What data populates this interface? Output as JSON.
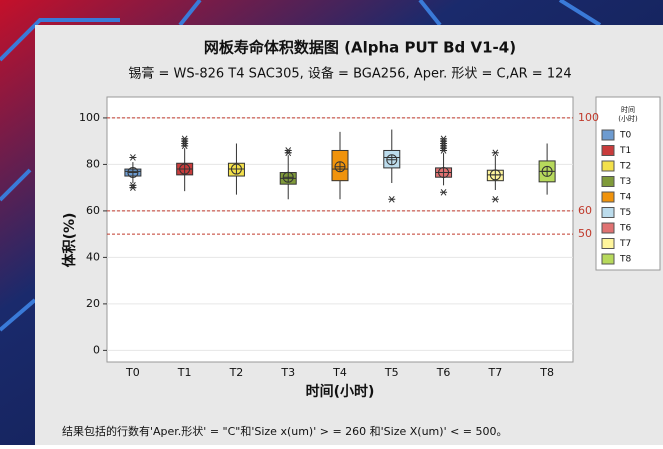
{
  "chart_data": {
    "type": "box",
    "title": "网板寿命体积数据图 (Alpha PUT Bd V1-4)",
    "subtitle": "锡膏 = WS-826 T4 SAC305, 设备 = BGA256, Aper. 形状 = C,AR = 124",
    "x_label": "时间(小时)",
    "y_label": "体积(%)",
    "legend_title": [
      "时间",
      "(小时)"
    ],
    "footnote": "结果包括的行数有'Aper.形状' = \"C\"和'Size x(um)' > = 260 和'Size X(um)' < = 500。",
    "categories": [
      "T0",
      "T1",
      "T2",
      "T3",
      "T4",
      "T5",
      "T6",
      "T7",
      "T8"
    ],
    "colors": [
      "#6d9bd0",
      "#c93c3c",
      "#f3e04a",
      "#7f9a3a",
      "#f0930c",
      "#bcdcec",
      "#e07272",
      "#fff59c",
      "#b7d95c"
    ],
    "boxes": [
      {
        "min": 72,
        "q1": 75,
        "median": 77,
        "q3": 78,
        "max": 81,
        "mean": 76.5,
        "outliers": [
          83,
          71,
          70
        ]
      },
      {
        "min": 68.5,
        "q1": 75.5,
        "median": 78,
        "q3": 80.5,
        "max": 87,
        "mean": 78,
        "outliers": [
          88,
          89,
          90,
          91
        ]
      },
      {
        "min": 67,
        "q1": 75,
        "median": 78,
        "q3": 80.5,
        "max": 89,
        "mean": 78,
        "outliers": []
      },
      {
        "min": 65,
        "q1": 71.5,
        "median": 74,
        "q3": 76.5,
        "max": 84,
        "mean": 74.5,
        "outliers": [
          85,
          86
        ]
      },
      {
        "min": 65,
        "q1": 73,
        "median": 78,
        "q3": 86,
        "max": 94,
        "mean": 79,
        "outliers": []
      },
      {
        "min": 72,
        "q1": 78.5,
        "median": 83,
        "q3": 86,
        "max": 95,
        "mean": 82,
        "outliers": [
          65
        ]
      },
      {
        "min": 71,
        "q1": 74.5,
        "median": 76.5,
        "q3": 78.5,
        "max": 85,
        "mean": 76.5,
        "outliers": [
          86,
          87,
          88,
          89,
          90,
          91,
          68
        ]
      },
      {
        "min": 69,
        "q1": 73,
        "median": 75.5,
        "q3": 77.5,
        "max": 84,
        "mean": 75.5,
        "outliers": [
          85,
          65
        ]
      },
      {
        "min": 67,
        "q1": 72.5,
        "median": 77,
        "q3": 81.5,
        "max": 89,
        "mean": 77,
        "outliers": []
      }
    ],
    "ylim": [
      -5,
      109
    ],
    "yticks": [
      0,
      20,
      40,
      60,
      80,
      100
    ],
    "grid": true,
    "hlines": [
      100,
      60,
      50
    ],
    "hline_color": "#c0392b"
  }
}
